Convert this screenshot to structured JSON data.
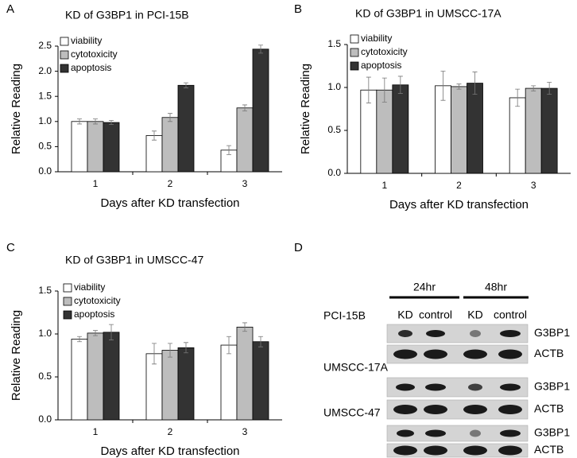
{
  "chart_data": [
    {
      "type": "bar",
      "panel": "A",
      "title": "KD of G3BP1 in PCI-15B",
      "x_label": "Days after KD transfection",
      "y_label": "Relative Reading",
      "categories": [
        "1",
        "2",
        "3"
      ],
      "series": [
        {
          "name": "viability",
          "color": "#ffffff",
          "values": [
            1.0,
            0.72,
            0.43
          ],
          "errors": [
            0.05,
            0.09,
            0.09
          ]
        },
        {
          "name": "cytotoxicity",
          "color": "#bdbdbd",
          "values": [
            1.0,
            1.08,
            1.27
          ],
          "errors": [
            0.05,
            0.08,
            0.06
          ]
        },
        {
          "name": "apoptosis",
          "color": "#333333",
          "values": [
            0.98,
            1.72,
            2.44
          ],
          "errors": [
            0.04,
            0.05,
            0.08
          ]
        }
      ],
      "ylim": [
        0,
        2.5
      ],
      "yticks": [
        {
          "value": 0,
          "label": "0.0"
        },
        0.5,
        {
          "value": 1,
          "label": "1.0"
        },
        1.5,
        {
          "value": 2,
          "label": "2.0"
        },
        2.5
      ],
      "legend": "upper left"
    },
    {
      "type": "bar",
      "panel": "B",
      "title": "KD of G3BP1 in UMSCC-17A",
      "x_label": "Days after KD transfection",
      "y_label": "Relative Reading",
      "categories": [
        "1",
        "2",
        "3"
      ],
      "series": [
        {
          "name": "viability",
          "color": "#ffffff",
          "values": [
            0.97,
            1.02,
            0.88
          ],
          "errors": [
            0.15,
            0.17,
            0.1
          ]
        },
        {
          "name": "cytotoxicity",
          "color": "#bdbdbd",
          "values": [
            0.97,
            1.01,
            0.99
          ],
          "errors": [
            0.14,
            0.03,
            0.03
          ]
        },
        {
          "name": "apoptosis",
          "color": "#333333",
          "values": [
            1.03,
            1.05,
            0.99
          ],
          "errors": [
            0.1,
            0.13,
            0.07
          ]
        }
      ],
      "ylim": [
        0,
        1.5
      ],
      "yticks": [
        {
          "value": 0,
          "label": "0.0"
        },
        0.5,
        {
          "value": 1,
          "label": "1.0"
        },
        1.5
      ],
      "legend": "upper left"
    },
    {
      "type": "bar",
      "panel": "C",
      "title": "KD of G3BP1 in UMSCC-47",
      "x_label": "Days after KD transfection",
      "y_label": "Relative Reading",
      "categories": [
        "1",
        "2",
        "3"
      ],
      "series": [
        {
          "name": "viability",
          "color": "#ffffff",
          "values": [
            0.94,
            0.77,
            0.87
          ],
          "errors": [
            0.03,
            0.12,
            0.1
          ]
        },
        {
          "name": "cytotoxicity",
          "color": "#bdbdbd",
          "values": [
            1.01,
            0.81,
            1.08
          ],
          "errors": [
            0.03,
            0.08,
            0.05
          ]
        },
        {
          "name": "apoptosis",
          "color": "#333333",
          "values": [
            1.02,
            0.84,
            0.91
          ],
          "errors": [
            0.09,
            0.06,
            0.06
          ]
        }
      ],
      "ylim": [
        0,
        1.5
      ],
      "yticks": [
        {
          "value": 0,
          "label": "0.0"
        },
        0.5,
        {
          "value": 1,
          "label": "1.0"
        },
        1.5
      ],
      "legend": "upper left"
    }
  ],
  "blot": {
    "panel": "D",
    "timepoints": [
      "24hr",
      "48hr"
    ],
    "lanes": [
      "KD",
      "control",
      "KD",
      "control"
    ],
    "cell_lines": [
      {
        "name": "PCI-15B",
        "proteins": [
          "G3BP1",
          "ACTB"
        ]
      },
      {
        "name": "UMSCC-17A",
        "proteins": [
          "G3BP1",
          "ACTB"
        ]
      },
      {
        "name": "UMSCC-47",
        "proteins": [
          "G3BP1",
          "ACTB"
        ]
      }
    ]
  }
}
